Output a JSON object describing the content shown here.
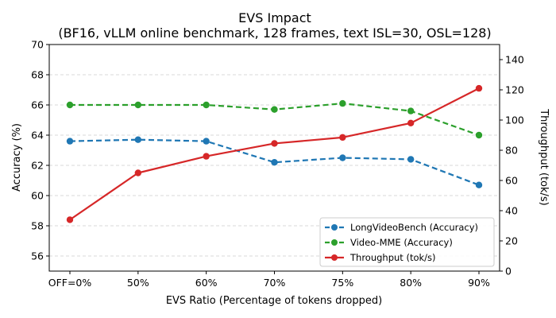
{
  "chart_data": {
    "type": "line",
    "title": "EVS Impact",
    "subtitle": "(BF16, vLLM online benchmark, 128 frames, text ISL=30, OSL=128)",
    "xlabel": "EVS Ratio (Percentage of tokens dropped)",
    "ylabel": "Accuracy (%)",
    "y2label": "Throughput (tok/s)",
    "categories": [
      "OFF=0%",
      "50%",
      "60%",
      "70%",
      "75%",
      "80%",
      "90%"
    ],
    "ylim": [
      55,
      70
    ],
    "yticks": [
      "56",
      "58",
      "60",
      "62",
      "64",
      "66",
      "68",
      "70"
    ],
    "y2lim": [
      0,
      150
    ],
    "y2ticks": [
      "0",
      "20",
      "40",
      "60",
      "80",
      "100",
      "120",
      "140"
    ],
    "grid": "horizontal-dashed",
    "legend_position": "lower-right",
    "series": [
      {
        "name": "LongVideoBench (Accuracy)",
        "axis": "left",
        "color": "#1f77b4",
        "dashed": true,
        "values": [
          63.6,
          63.7,
          63.6,
          62.2,
          62.5,
          62.4,
          60.7
        ]
      },
      {
        "name": "Video-MME (Accuracy)",
        "axis": "left",
        "color": "#2ca02c",
        "dashed": true,
        "values": [
          66.0,
          66.0,
          66.0,
          65.7,
          66.1,
          65.6,
          64.0
        ]
      },
      {
        "name": "Throughput (tok/s)",
        "axis": "right",
        "color": "#d62728",
        "dashed": false,
        "values": [
          34,
          65,
          76,
          84.5,
          88.5,
          98,
          121
        ]
      }
    ]
  }
}
